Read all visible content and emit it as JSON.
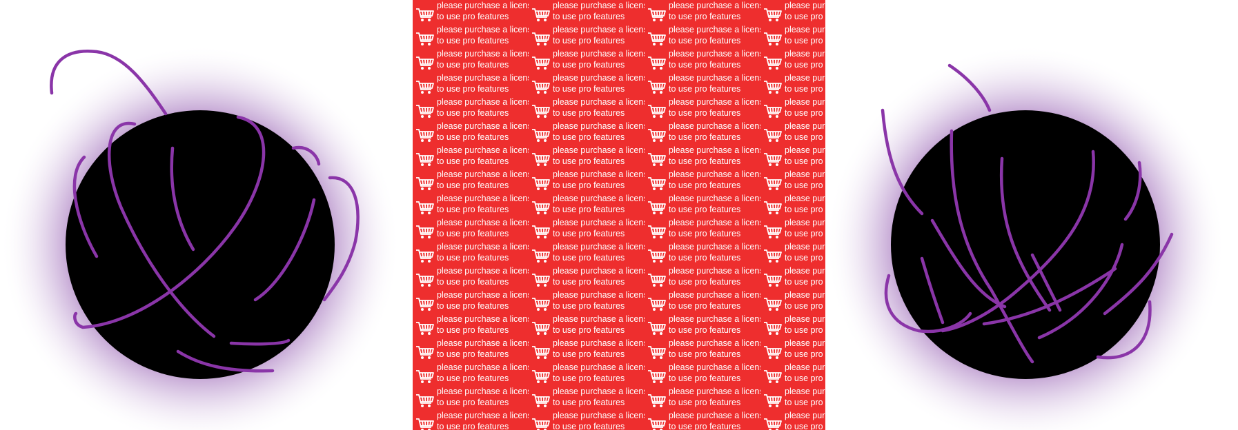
{
  "colors": {
    "orb_fill": "#000000",
    "glow": "#8a4aa8",
    "scribble": "#8a35a8",
    "watermark_bg": "#ee2e2e",
    "watermark_text": "#ffffff"
  },
  "panels": {
    "left": {
      "icon": "scribbled-dark-orb"
    },
    "center": {
      "icon": "shopping-cart-icon",
      "watermark": {
        "line1": "please purchase a license",
        "line2": "to use pro features"
      }
    },
    "right": {
      "icon": "scribbled-dark-orb"
    }
  }
}
